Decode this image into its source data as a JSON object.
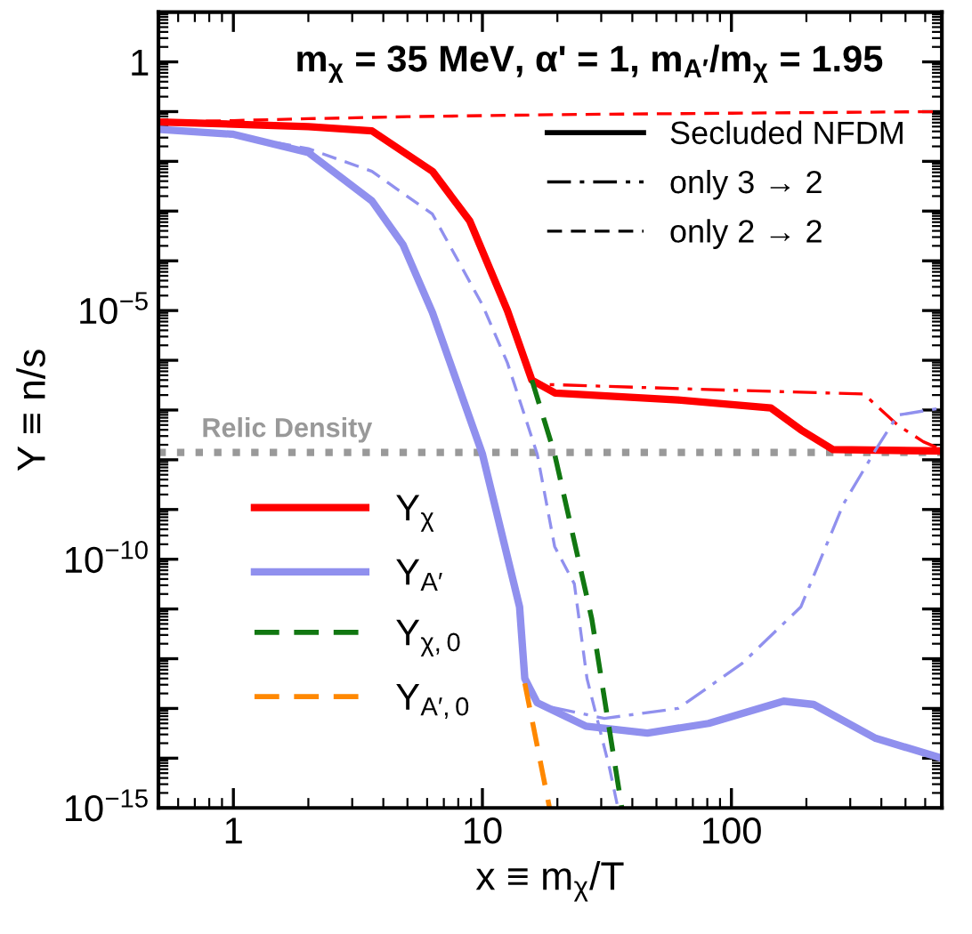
{
  "chart_data": {
    "type": "line",
    "title": "m$_{χ}$ = 35 MeV, α' = 1, m$_{A′}$/m$_{χ}$ = 1.95",
    "xlabel": "x ≡ m$_{χ}$/T",
    "ylabel": "Y ≡ n/s",
    "log": "xy",
    "grid": false,
    "legend": "bottom left",
    "xlim": [
      0.5,
      700
    ],
    "xticks": [
      1,
      10,
      100
    ],
    "ylim": [
      1e-15,
      10
    ],
    "yticks": [
      {
        "value": 1e-15,
        "label": "10$^{−15}$"
      },
      {
        "value": 1e-14,
        "label": null
      },
      {
        "value": 1e-13,
        "label": null
      },
      {
        "value": 1e-12,
        "label": null
      },
      {
        "value": 1e-11,
        "label": null
      },
      {
        "value": 1e-10,
        "label": "10$^{−10}$"
      },
      {
        "value": 1e-09,
        "label": null
      },
      {
        "value": 1e-08,
        "label": null
      },
      {
        "value": 1e-07,
        "label": null
      },
      {
        "value": 1e-06,
        "label": null
      },
      {
        "value": 1e-05,
        "label": "10$^{−5}$"
      },
      {
        "value": 0.0001,
        "label": null
      },
      {
        "value": 0.001,
        "label": null
      },
      {
        "value": 0.01,
        "label": null
      },
      {
        "value": 0.1,
        "label": null
      },
      1
    ],
    "annotations": [
      "Secluded NFDM",
      "only 3 → 2",
      "only 2 → 2"
    ],
    "ref_lines": [
      {
        "axis": "y",
        "value": 1.4e-08,
        "label": "Relic Density",
        "color": "#999999",
        "line_style": "dotted"
      }
    ],
    "series": [
      {
        "name": "Y$_{χ}$",
        "color": "#ff0000",
        "line_style": "solid",
        "x": [
          0.5,
          1,
          2,
          3.6,
          6.3,
          8.9,
          12.6,
          15.8,
          19.6,
          61,
          144,
          190,
          256,
          700
        ],
        "values": [
          0.062,
          0.056,
          0.05,
          0.041,
          0.0063,
          0.00063,
          1e-05,
          4e-07,
          2.2e-07,
          1.6e-07,
          1.1e-07,
          4e-08,
          1.6e-08,
          1.5e-08
        ]
      },
      {
        "color": "#ff0000",
        "line_style": "dashdot",
        "x": [
          0.5,
          1,
          2,
          3.6,
          6.3,
          8.9,
          12.6,
          15.8,
          17,
          100,
          340,
          465,
          590,
          700
        ],
        "values": [
          0.062,
          0.056,
          0.05,
          0.041,
          0.0063,
          0.00063,
          1e-05,
          4e-07,
          3.3e-07,
          2.5e-07,
          2.1e-07,
          5e-08,
          2.3e-08,
          1.6e-08
        ]
      },
      {
        "color": "#ff0000",
        "line_style": "dashed",
        "x": [
          0.5,
          1,
          2,
          5,
          20,
          100,
          700
        ],
        "values": [
          0.062,
          0.066,
          0.072,
          0.079,
          0.087,
          0.093,
          0.1
        ]
      },
      {
        "name": "Y$_{A′}$",
        "color": "#9090ee",
        "line_style": "solid",
        "x": [
          0.5,
          1,
          2,
          3.6,
          4.8,
          6.3,
          10,
          14.1,
          14.8,
          16.6,
          26,
          46,
          81,
          162,
          214,
          380,
          700
        ],
        "values": [
          0.044,
          0.035,
          0.015,
          0.0016,
          0.00021,
          9.1e-06,
          1.3e-08,
          1.1e-11,
          4e-13,
          1.3e-13,
          4.4e-14,
          3.2e-14,
          5e-14,
          1.4e-13,
          1.2e-13,
          2.5e-14,
          1e-14
        ]
      },
      {
        "color": "#9090ee",
        "line_style": "dashdot",
        "x": [
          0.5,
          1,
          2,
          3.6,
          4.8,
          6.3,
          10,
          14.1,
          14.8,
          16.9,
          30.9,
          61,
          110,
          190,
          282,
          380,
          465,
          700
        ],
        "values": [
          0.044,
          0.035,
          0.015,
          0.0016,
          0.00021,
          9.1e-06,
          1.3e-08,
          1.1e-11,
          4e-13,
          1.2e-13,
          6.3e-14,
          1e-13,
          7.9e-13,
          1.1e-11,
          1.3e-09,
          1.6e-08,
          7.9e-08,
          1.1e-07
        ]
      },
      {
        "color": "#9090ee",
        "line_style": "dashed",
        "x": [
          0.5,
          1.15,
          2,
          3.6,
          6.3,
          10,
          12.6,
          16.6,
          19.5,
          23.4,
          26.3,
          32.4,
          35
        ],
        "values": [
          0.044,
          0.03,
          0.018,
          0.0063,
          0.00087,
          1.3e-05,
          8.9e-07,
          1.3e-08,
          1.8e-10,
          3.2e-11,
          4e-13,
          6.3e-15,
          1e-15
        ]
      },
      {
        "name": "Y$_{χ,0}$",
        "color": "#117711",
        "line_style": "dashed",
        "x": [
          15.8,
          19.5,
          27.5,
          36.3
        ],
        "values": [
          4e-07,
          1.3e-08,
          6.3e-12,
          1e-15
        ]
      },
      {
        "name": "Y$_{A′,0}$",
        "color": "#ff8800",
        "line_style": "dashed",
        "x": [
          14.8,
          18.6
        ],
        "values": [
          3.2e-13,
          1e-15
        ]
      }
    ]
  }
}
